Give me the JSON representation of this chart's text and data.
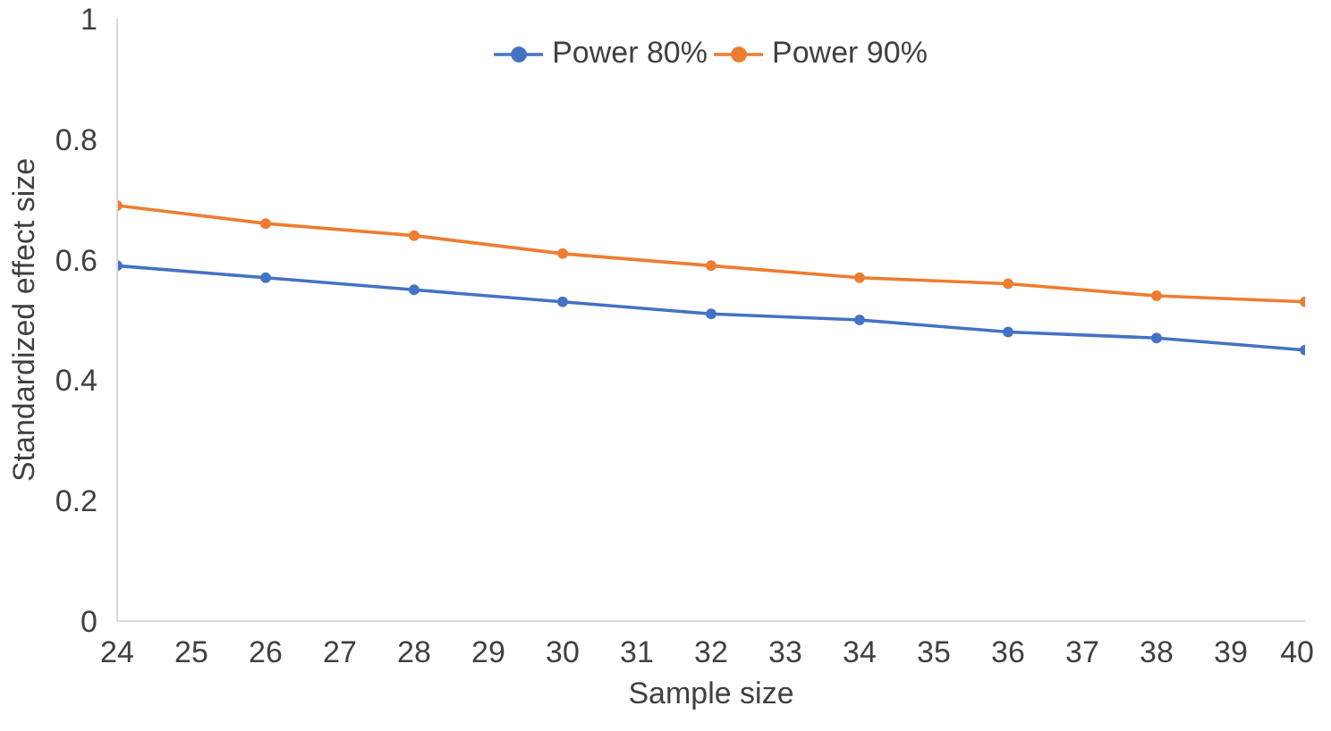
{
  "chart_data": {
    "type": "line",
    "xlabel": "Sample size",
    "ylabel": "Standardized effect size",
    "x": [
      24,
      26,
      28,
      30,
      32,
      34,
      36,
      38,
      40
    ],
    "series": [
      {
        "name": "Power 80%",
        "color": "#4472c4",
        "values": [
          0.59,
          0.57,
          0.55,
          0.53,
          0.51,
          0.5,
          0.48,
          0.47,
          0.45
        ]
      },
      {
        "name": "Power 90%",
        "color": "#ed7d31",
        "values": [
          0.69,
          0.66,
          0.64,
          0.61,
          0.59,
          0.57,
          0.56,
          0.54,
          0.53
        ]
      }
    ],
    "xlim": [
      24,
      40
    ],
    "xticks": [
      24,
      25,
      26,
      27,
      28,
      29,
      30,
      31,
      32,
      33,
      34,
      35,
      36,
      37,
      38,
      39,
      40
    ],
    "ylim": [
      0,
      1
    ],
    "yticks": [
      0,
      0.2,
      0.4,
      0.6,
      0.8,
      1
    ],
    "grid": false,
    "legend": "top",
    "marker": "circle",
    "line_style": "solid"
  }
}
